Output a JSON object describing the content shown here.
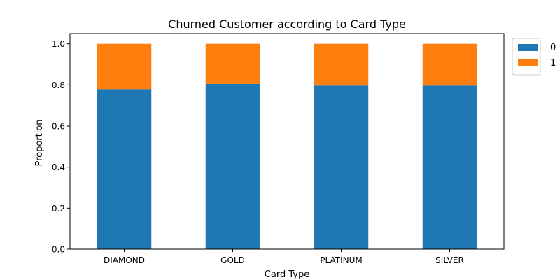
{
  "chart_data": {
    "type": "bar",
    "stacked": true,
    "title": "Churned Customer according to Card Type",
    "xlabel": "Card Type",
    "ylabel": "Proportion",
    "categories": [
      "DIAMOND",
      "GOLD",
      "PLATINUM",
      "SILVER"
    ],
    "series": [
      {
        "name": "0",
        "values": [
          0.78,
          0.805,
          0.797,
          0.797
        ],
        "color": "#1f77b4"
      },
      {
        "name": "1",
        "values": [
          0.22,
          0.195,
          0.203,
          0.203
        ],
        "color": "#ff7f0e"
      }
    ],
    "ylim": [
      0,
      1.05
    ],
    "yticks": [
      "0.0",
      "0.2",
      "0.4",
      "0.6",
      "0.8",
      "1.0"
    ],
    "grid": false,
    "legend_position": "outside-top-right"
  }
}
